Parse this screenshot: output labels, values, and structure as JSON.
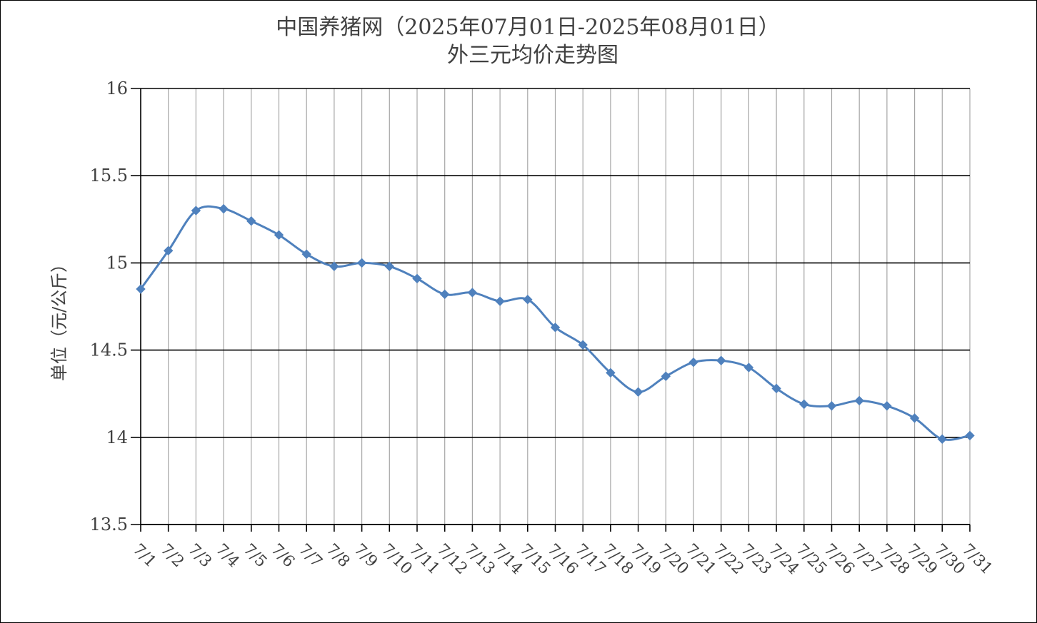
{
  "chart_data": {
    "type": "line",
    "title": "中国养猪网（2025年07月01日-2025年08月01日）",
    "subtitle": "外三元均价走势图",
    "xlabel": "",
    "ylabel": "单位（元/公斤）",
    "ylim": [
      13.5,
      16
    ],
    "yticks": [
      "13.5",
      "14",
      "14.5",
      "15",
      "15.5",
      "16"
    ],
    "grid": true,
    "legend": "none",
    "smooth": true,
    "marker": "diamond",
    "colors": {
      "line": "#4F81BD",
      "grid_major": "#000000",
      "grid_minor": "#A6A6A6",
      "axis": "#000000",
      "text": "#404040"
    },
    "categories": [
      "7/1",
      "7/2",
      "7/3",
      "7/4",
      "7/5",
      "7/6",
      "7/7",
      "7/8",
      "7/9",
      "7/10",
      "7/11",
      "7/12",
      "7/13",
      "7/14",
      "7/15",
      "7/16",
      "7/17",
      "7/18",
      "7/19",
      "7/20",
      "7/21",
      "7/22",
      "7/23",
      "7/24",
      "7/25",
      "7/26",
      "7/27",
      "7/28",
      "7/29",
      "7/30",
      "7/31"
    ],
    "series": [
      {
        "values": [
          14.85,
          15.07,
          15.3,
          15.31,
          15.24,
          15.16,
          15.05,
          14.98,
          15.0,
          14.98,
          14.91,
          14.82,
          14.83,
          14.78,
          14.79,
          14.63,
          14.53,
          14.37,
          14.26,
          14.35,
          14.43,
          14.44,
          14.4,
          14.28,
          14.19,
          14.18,
          14.21,
          14.18,
          14.11,
          13.99,
          14.01
        ]
      }
    ]
  }
}
